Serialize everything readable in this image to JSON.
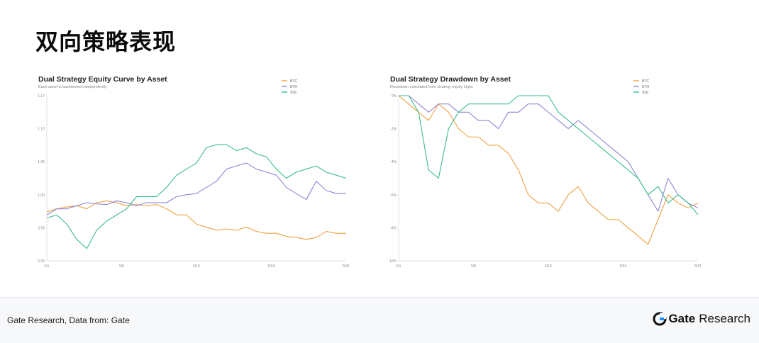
{
  "page": {
    "title": "双向策略表现"
  },
  "footer": {
    "source": "Gate Research, Data from: Gate",
    "logo_word": "Gate",
    "logo_suffix": "Research"
  },
  "colors": {
    "BTC": "#f0a142",
    "ETH": "#8c86d6",
    "SOL": "#3cbd8d"
  },
  "chart_data": [
    {
      "type": "line",
      "title": "Dual Strategy Equity Curve by Asset",
      "subtitle": "Each asset is backtested independently",
      "xlabel": "",
      "ylabel": "",
      "x_ticks": [
        "5/1",
        "5/8",
        "5/16",
        "5/24",
        "5/31"
      ],
      "x": [
        1,
        2,
        3,
        4,
        5,
        6,
        7,
        8,
        9,
        10,
        11,
        12,
        13,
        14,
        15,
        16,
        17,
        18,
        19,
        20,
        21,
        22,
        23,
        24,
        25,
        26,
        27,
        28,
        29,
        30,
        31
      ],
      "y_ticks": [
        "0.90",
        "0.95",
        "1.00",
        "1.05",
        "1.10",
        "1.17"
      ],
      "ylim": [
        0.9,
        1.17
      ],
      "legend_position": "top-right",
      "grid": false,
      "series": [
        {
          "name": "BTC",
          "values": [
            0.98,
            0.985,
            0.988,
            0.99,
            0.985,
            0.995,
            0.998,
            0.995,
            0.99,
            0.992,
            0.99,
            0.992,
            0.985,
            0.975,
            0.975,
            0.96,
            0.955,
            0.95,
            0.952,
            0.95,
            0.955,
            0.948,
            0.945,
            0.945,
            0.94,
            0.938,
            0.935,
            0.938,
            0.948,
            0.945,
            0.945
          ]
        },
        {
          "name": "ETH",
          "values": [
            0.975,
            0.985,
            0.985,
            0.99,
            0.995,
            0.993,
            0.992,
            0.998,
            0.995,
            0.99,
            0.995,
            0.995,
            0.995,
            1.005,
            1.008,
            1.01,
            1.02,
            1.03,
            1.05,
            1.055,
            1.06,
            1.05,
            1.045,
            1.04,
            1.02,
            1.01,
            1.0,
            1.03,
            1.015,
            1.01,
            1.01
          ]
        },
        {
          "name": "SOL",
          "values": [
            0.97,
            0.975,
            0.96,
            0.935,
            0.92,
            0.95,
            0.965,
            0.975,
            0.985,
            1.005,
            1.005,
            1.005,
            1.02,
            1.04,
            1.05,
            1.06,
            1.085,
            1.09,
            1.09,
            1.08,
            1.085,
            1.075,
            1.07,
            1.05,
            1.035,
            1.045,
            1.05,
            1.055,
            1.045,
            1.04,
            1.035
          ]
        }
      ]
    },
    {
      "type": "line",
      "title": "Dual Strategy Drawdown by Asset",
      "subtitle": "Drawdown calculated from strategy equity highs",
      "xlabel": "",
      "ylabel": "",
      "x_ticks": [
        "5/1",
        "5/8",
        "5/16",
        "5/24",
        "5/31"
      ],
      "x": [
        1,
        2,
        3,
        4,
        5,
        6,
        7,
        8,
        9,
        10,
        11,
        12,
        13,
        14,
        15,
        16,
        17,
        18,
        19,
        20,
        21,
        22,
        23,
        24,
        25,
        26,
        27,
        28,
        29,
        30,
        31
      ],
      "y_ticks": [
        "-10%",
        "-8%",
        "-6%",
        "-4%",
        "-2%",
        "0%"
      ],
      "ylim": [
        -10,
        0
      ],
      "legend_position": "top-right",
      "grid": false,
      "series": [
        {
          "name": "BTC",
          "values": [
            0.0,
            -0.5,
            -1.0,
            -1.5,
            -0.5,
            -1.0,
            -2.0,
            -2.5,
            -2.5,
            -3.0,
            -3.0,
            -3.5,
            -4.5,
            -6.0,
            -6.5,
            -6.5,
            -7.0,
            -6.0,
            -5.5,
            -6.5,
            -7.0,
            -7.5,
            -7.5,
            -8.0,
            -8.5,
            -9.0,
            -7.5,
            -6.0,
            -6.5,
            -6.8,
            -6.5
          ]
        },
        {
          "name": "ETH",
          "values": [
            0.0,
            0.0,
            -0.5,
            -1.0,
            -0.5,
            -0.5,
            -1.0,
            -1.0,
            -1.5,
            -1.5,
            -2.0,
            -1.0,
            -1.0,
            -0.5,
            -0.5,
            -1.0,
            -1.5,
            -2.0,
            -1.5,
            -2.0,
            -2.5,
            -3.0,
            -3.5,
            -4.0,
            -5.0,
            -6.0,
            -7.0,
            -5.0,
            -6.0,
            -6.5,
            -6.8
          ]
        },
        {
          "name": "SOL",
          "values": [
            0.0,
            0.0,
            -1.0,
            -4.5,
            -5.0,
            -2.0,
            -1.0,
            -0.5,
            -0.5,
            -0.5,
            -0.5,
            -0.5,
            0.0,
            0.0,
            0.0,
            0.0,
            -1.0,
            -1.5,
            -2.0,
            -2.5,
            -3.0,
            -3.5,
            -4.0,
            -4.5,
            -5.0,
            -6.0,
            -5.5,
            -6.5,
            -6.0,
            -6.5,
            -7.2
          ]
        }
      ]
    }
  ]
}
